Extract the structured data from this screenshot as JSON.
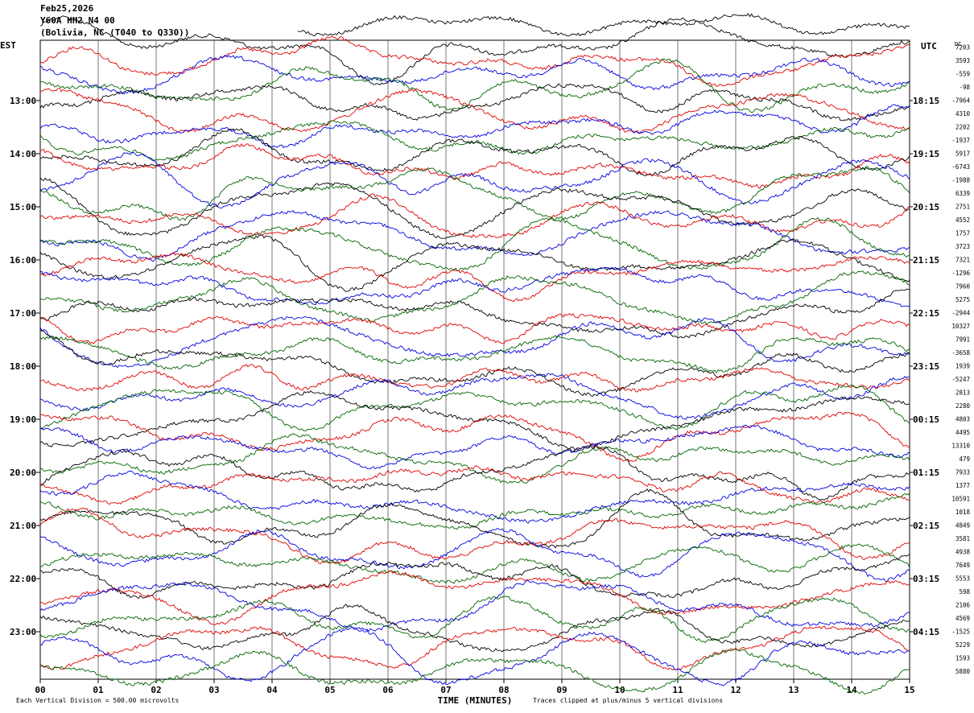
{
  "header": {
    "date": "Feb25,2026",
    "station": "Y60A HH2 N4 00",
    "location": "(Bolivia, NC (T040 to Q330))"
  },
  "chart_data": {
    "type": "line",
    "title": "",
    "left_axis_label": "EST",
    "right_axis_label": "UTC",
    "dc_label": "DC",
    "xlabel": "TIME (MINUTES)",
    "xlim": [
      0,
      15
    ],
    "x_ticks": [
      "00",
      "01",
      "02",
      "03",
      "04",
      "05",
      "06",
      "07",
      "08",
      "09",
      "10",
      "11",
      "12",
      "13",
      "14",
      "15"
    ],
    "grid_vertical": true,
    "colors": [
      "#000000",
      "#e00000",
      "#0000e0",
      "#006400"
    ],
    "rows_per_hour": 4,
    "left_hour_labels": [
      "13:00",
      "14:00",
      "15:00",
      "16:00",
      "17:00",
      "18:00",
      "19:00",
      "20:00",
      "21:00",
      "22:00",
      "23:00"
    ],
    "right_hour_labels": [
      "18:15",
      "19:15",
      "20:15",
      "21:15",
      "22:15",
      "23:15",
      "00:15",
      "01:15",
      "02:15",
      "03:15",
      "04:15"
    ],
    "dc_offsets": [
      "7203",
      "3593",
      "-559",
      "-98",
      "-7964",
      "4310",
      "2202",
      "-1937",
      "5917",
      "-6743",
      "-1988",
      "6339",
      "2751",
      "4552",
      "1757",
      "3723",
      "7321",
      "-1296",
      "7960",
      "5275",
      "-2944",
      "10327",
      "7991",
      "-3658",
      "1939",
      "-5247",
      "2813",
      "2280",
      "4803",
      "4495",
      "13310",
      "479",
      "7933",
      "1377",
      "10591",
      "1018",
      "4849",
      "3581",
      "4938",
      "7649",
      "5553",
      "598",
      "2106",
      "4569",
      "-1525",
      "5229",
      "1593",
      "5880"
    ],
    "vertical_division": "Each Vertical Division =  500.00 microvolts",
    "clip_note": "Traces clipped at plus/minus 5 vertical divisions"
  }
}
